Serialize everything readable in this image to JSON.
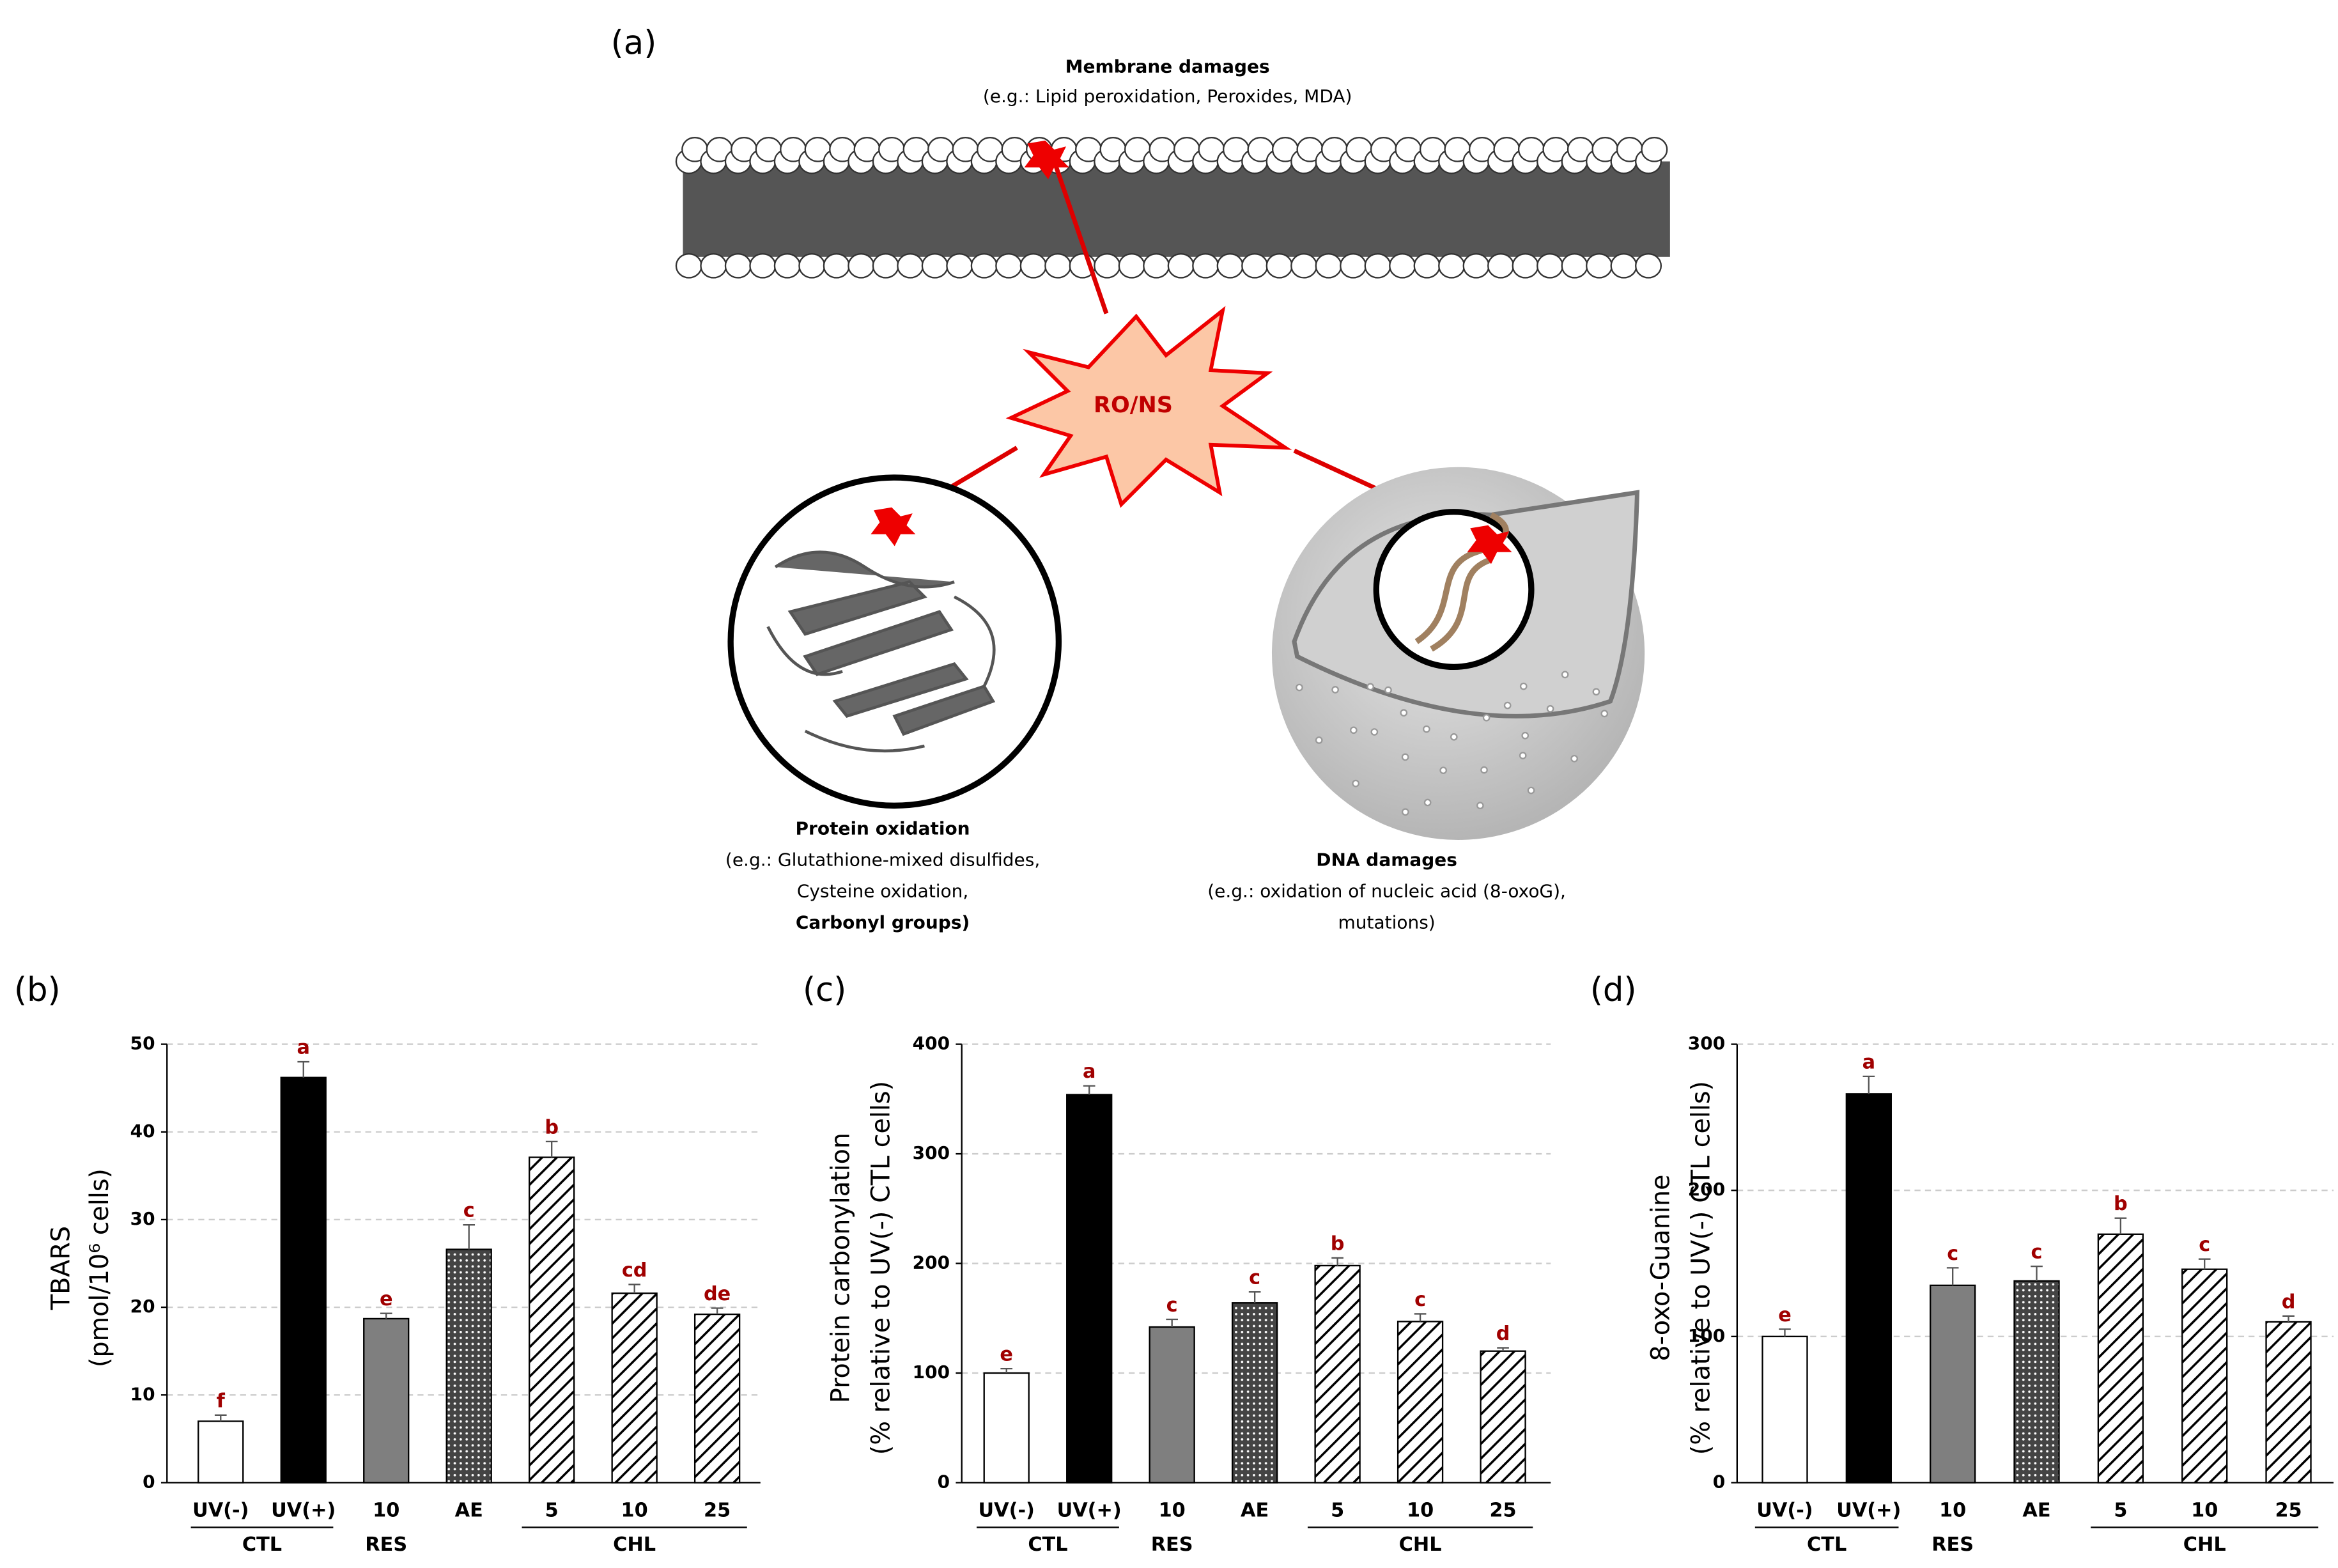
{
  "diagram": {
    "panel_label": "(a)",
    "membrane_title": "Membrane damages",
    "membrane_detail": "(e.g.: Lipid peroxidation, Peroxides, MDA)",
    "center_label": "RO/NS",
    "protein_title": "Protein oxidation",
    "protein_detail": [
      "(e.g.: Glutathione-mixed disulfides,",
      "Cysteine oxidation,",
      "Carbonyl groups)"
    ],
    "dna_title": "DNA damages",
    "dna_detail": [
      "(e.g.: oxidation of nucleic acid (8-oxoG),",
      "mutations)"
    ]
  },
  "chart_data": [
    {
      "type": "bar",
      "panel_label": "(b)",
      "ylabel": [
        "TBARS",
        "(pmol/10⁶ cells)"
      ],
      "categories": [
        "UV(-)",
        "UV(+)",
        "10",
        "AE",
        "5",
        "10",
        "25"
      ],
      "category_groups": [
        "CTL",
        "CTL",
        "RES",
        null,
        "CHL",
        "CHL",
        "CHL"
      ],
      "values": [
        7,
        46.2,
        18.7,
        26.6,
        37.1,
        21.6,
        19.2
      ],
      "errors": [
        0.7,
        1.8,
        0.6,
        2.8,
        1.8,
        1.0,
        0.7
      ],
      "significance": [
        "f",
        "a",
        "e",
        "c",
        "b",
        "cd",
        "de"
      ],
      "bar_styles": [
        "#ffffff",
        "#000000",
        "#7f7f7f",
        "dots",
        "hatch",
        "hatch",
        "hatch"
      ],
      "ylim": [
        0,
        50
      ],
      "yticks": [
        0,
        10,
        20,
        30,
        40,
        50
      ],
      "grid": true
    },
    {
      "type": "bar",
      "panel_label": "(c)",
      "ylabel": [
        "Protein carbonylation",
        "(% relative to UV(-) CTL cells)"
      ],
      "categories": [
        "UV(-)",
        "UV(+)",
        "10",
        "AE",
        "5",
        "10",
        "25"
      ],
      "category_groups": [
        "CTL",
        "CTL",
        "RES",
        null,
        "CHL",
        "CHL",
        "CHL"
      ],
      "values": [
        100,
        354,
        142,
        164,
        198,
        147,
        120
      ],
      "errors": [
        4,
        8,
        7,
        10,
        7,
        7,
        3
      ],
      "significance": [
        "e",
        "a",
        "c",
        "c",
        "b",
        "c",
        "d"
      ],
      "bar_styles": [
        "#ffffff",
        "#000000",
        "#7f7f7f",
        "dots",
        "hatch",
        "hatch",
        "hatch"
      ],
      "ylim": [
        0,
        400
      ],
      "yticks": [
        0,
        100,
        200,
        300,
        400
      ],
      "grid": true
    },
    {
      "type": "bar",
      "panel_label": "(d)",
      "ylabel": [
        "8-oxo-Guanine",
        "(% relative to UV(-) CTL cells)"
      ],
      "categories": [
        "UV(-)",
        "UV(+)",
        "10",
        "AE",
        "5",
        "10",
        "25"
      ],
      "category_groups": [
        "CTL",
        "CTL",
        "RES",
        null,
        "CHL",
        "CHL",
        "CHL"
      ],
      "values": [
        100,
        266,
        135,
        138,
        170,
        146,
        110
      ],
      "errors": [
        5,
        12,
        12,
        10,
        11,
        7,
        4
      ],
      "significance": [
        "e",
        "a",
        "c",
        "c",
        "b",
        "c",
        "d"
      ],
      "bar_styles": [
        "#ffffff",
        "#000000",
        "#7f7f7f",
        "dots",
        "hatch",
        "hatch",
        "hatch"
      ],
      "ylim": [
        0,
        300
      ],
      "yticks": [
        0,
        100,
        200,
        300
      ],
      "grid": true
    }
  ]
}
